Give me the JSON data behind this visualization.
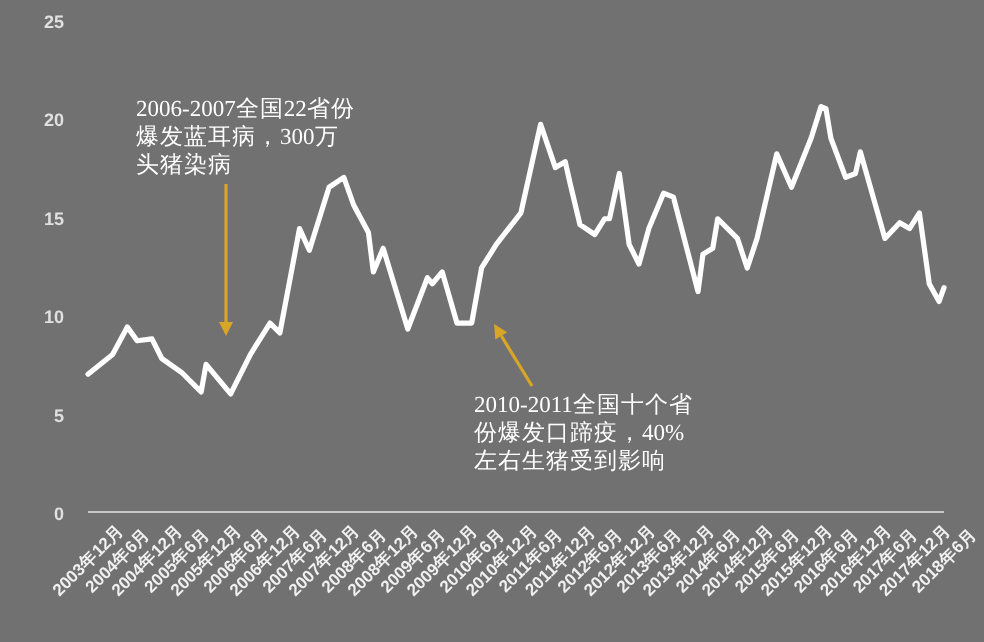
{
  "chart_data": {
    "type": "line",
    "x": [
      "2003-12",
      "2004-05",
      "2004-08",
      "2004-10",
      "2005-01",
      "2005-03",
      "2005-07",
      "2005-11",
      "2005-12",
      "2006-05",
      "2006-09",
      "2007-01",
      "2007-03",
      "2007-07",
      "2007-09",
      "2008-01",
      "2008-04",
      "2008-06",
      "2008-09",
      "2008-10",
      "2008-12",
      "2009-05",
      "2009-09",
      "2009-10",
      "2009-12",
      "2010-03",
      "2010-06",
      "2010-08",
      "2010-11",
      "2011-04",
      "2011-08",
      "2011-11",
      "2012-01",
      "2012-02",
      "2012-04",
      "2012-07",
      "2012-09",
      "2012-10",
      "2012-12",
      "2013-02",
      "2013-04",
      "2013-06",
      "2013-09",
      "2013-11",
      "2014-04",
      "2014-05",
      "2014-07",
      "2014-08",
      "2014-12",
      "2015-02",
      "2015-04",
      "2015-08",
      "2015-11",
      "2016-03",
      "2016-05",
      "2016-06",
      "2016-07",
      "2016-10",
      "2016-12",
      "2017-01",
      "2017-06",
      "2017-09",
      "2017-11",
      "2018-01",
      "2018-03",
      "2018-05",
      "2018-06"
    ],
    "series": [
      {
        "color": "#ffffff",
        "values": [
          7.0,
          8.0,
          9.4,
          8.7,
          8.8,
          7.8,
          7.1,
          6.1,
          7.5,
          6.0,
          8.0,
          9.6,
          9.1,
          14.4,
          13.3,
          16.5,
          17.0,
          15.6,
          14.2,
          12.2,
          13.4,
          9.3,
          11.9,
          11.6,
          12.2,
          9.6,
          9.6,
          12.4,
          13.6,
          15.2,
          19.7,
          17.5,
          17.8,
          16.7,
          14.6,
          14.1,
          14.9,
          14.9,
          17.2,
          13.6,
          12.6,
          14.4,
          16.2,
          16.0,
          11.2,
          13.1,
          13.4,
          14.9,
          13.9,
          12.4,
          13.9,
          18.2,
          16.5,
          19.0,
          20.6,
          20.5,
          19.0,
          17.0,
          17.2,
          18.3,
          13.9,
          14.7,
          14.4,
          15.2,
          11.6,
          10.7,
          11.4
        ]
      }
    ],
    "xlim": [
      "2003-12",
      "2018-06"
    ],
    "xticks": [
      {
        "value": "2003-12",
        "label": "2003年12月"
      },
      {
        "value": "2004-06",
        "label": "2004年6月"
      },
      {
        "value": "2004-12",
        "label": "2004年12月"
      },
      {
        "value": "2005-06",
        "label": "2005年6月"
      },
      {
        "value": "2005-12",
        "label": "2005年12月"
      },
      {
        "value": "2006-06",
        "label": "2006年6月"
      },
      {
        "value": "2006-12",
        "label": "2006年12月"
      },
      {
        "value": "2007-06",
        "label": "2007年6月"
      },
      {
        "value": "2007-12",
        "label": "2007年12月"
      },
      {
        "value": "2008-06",
        "label": "2008年6月"
      },
      {
        "value": "2008-12",
        "label": "2008年12月"
      },
      {
        "value": "2009-06",
        "label": "2009年6月"
      },
      {
        "value": "2009-12",
        "label": "2009年12月"
      },
      {
        "value": "2010-06",
        "label": "2010年6月"
      },
      {
        "value": "2010-12",
        "label": "2010年12月"
      },
      {
        "value": "2011-06",
        "label": "2011年6月"
      },
      {
        "value": "2011-12",
        "label": "2011年12月"
      },
      {
        "value": "2012-06",
        "label": "2012年6月"
      },
      {
        "value": "2012-12",
        "label": "2012年12月"
      },
      {
        "value": "2013-06",
        "label": "2013年6月"
      },
      {
        "value": "2013-12",
        "label": "2013年12月"
      },
      {
        "value": "2014-06",
        "label": "2014年6月"
      },
      {
        "value": "2014-12",
        "label": "2014年12月"
      },
      {
        "value": "2015-06",
        "label": "2015年6月"
      },
      {
        "value": "2015-12",
        "label": "2015年12月"
      },
      {
        "value": "2016-06",
        "label": "2016年6月"
      },
      {
        "value": "2016-12",
        "label": "2016年12月"
      },
      {
        "value": "2017-06",
        "label": "2017年6月"
      },
      {
        "value": "2017-12",
        "label": "2017年12月"
      },
      {
        "value": "2018-06",
        "label": "2018年6月"
      }
    ],
    "ylim": [
      0,
      25
    ],
    "yticks": [
      0,
      5,
      10,
      15,
      20,
      25
    ],
    "grid": false,
    "marker": "none",
    "line_style": "solid",
    "annotations": [
      "2006-2007全国22省份爆发蓝耳病，300万头猪染病",
      "2010-2011全国十个省份爆发口蹄疫，40%左右生猪受到影响"
    ]
  }
}
